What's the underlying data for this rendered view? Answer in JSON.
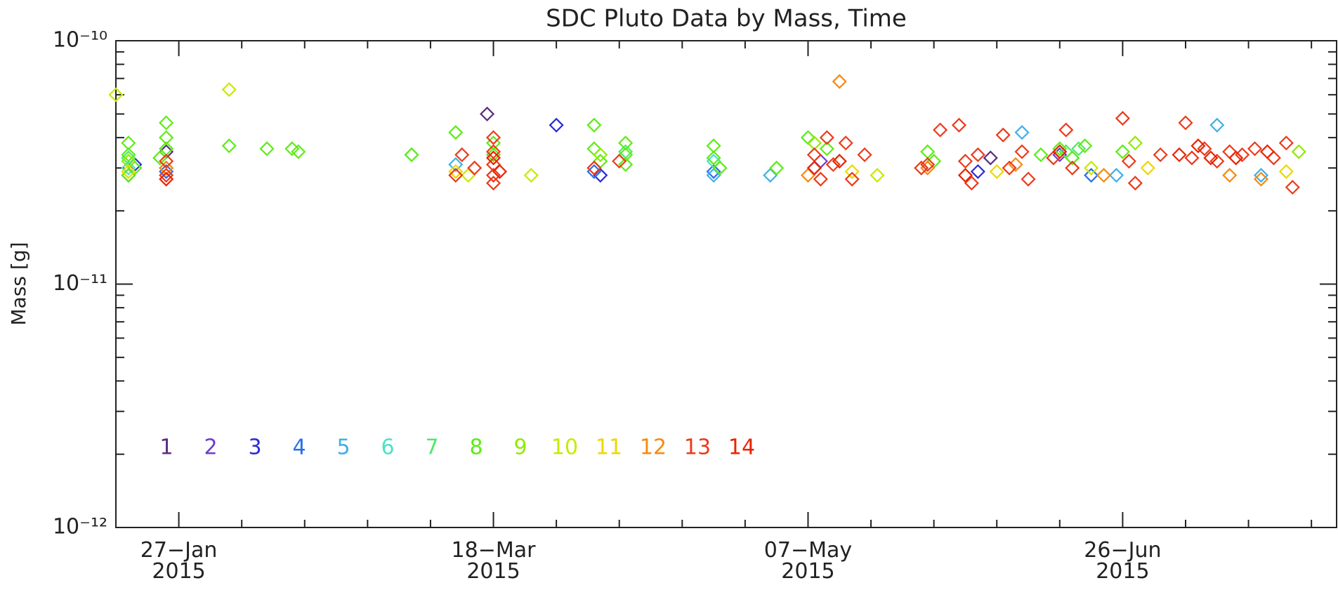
{
  "chart_data": {
    "type": "scatter",
    "title": "SDC Pluto Data by Mass, Time",
    "y_label": "Mass [g]",
    "log_y": true,
    "xlim": [
      "2015-01-17",
      "2015-07-30"
    ],
    "xticks": [
      {
        "value": "2015-01-27",
        "label": "27−Jan\n2015"
      },
      {
        "value": "2015-03-18",
        "label": "18−Mar\n2015"
      },
      {
        "value": "2015-05-07",
        "label": "07−May\n2015"
      },
      {
        "value": "2015-06-26",
        "label": "26−Jun\n2015"
      }
    ],
    "xminorticks": [
      "2015-02-06",
      "2015-02-16",
      "2015-02-26",
      "2015-03-08",
      "2015-03-28",
      "2015-04-07",
      "2015-04-17",
      "2015-04-27",
      "2015-05-17",
      "2015-05-27",
      "2015-06-06",
      "2015-06-16",
      "2015-07-06",
      "2015-07-16",
      "2015-07-26"
    ],
    "ylim": [
      1e-12,
      1e-10
    ],
    "yticks": [
      {
        "value": 1e-12,
        "label": "10⁻¹²"
      },
      {
        "value": 1e-11,
        "label": "10⁻¹¹"
      },
      {
        "value": 1e-10,
        "label": "10⁻¹⁰"
      }
    ],
    "yminorticks": [
      2e-12,
      3e-12,
      4e-12,
      5e-12,
      6e-12,
      7e-12,
      8e-12,
      9e-12,
      2e-11,
      3e-11,
      4e-11,
      5e-11,
      6e-11,
      7e-11,
      8e-11,
      9e-11
    ],
    "series": [
      {
        "name": "1",
        "color": "#5a2d82",
        "x": [
          "2015-01-25",
          "2015-03-17",
          "2015-06-05"
        ],
        "values": [
          3.5e-11,
          5e-11,
          3.3e-11
        ]
      },
      {
        "name": "2",
        "color": "#6f3bd0",
        "x": [
          "2015-01-25",
          "2015-05-09",
          "2015-06-16"
        ],
        "values": [
          3e-11,
          3.2e-11,
          3.4e-11
        ]
      },
      {
        "name": "3",
        "color": "#2b2bd6",
        "x": [
          "2015-01-20",
          "2015-03-28",
          "2015-04-04",
          "2015-05-08",
          "2015-06-03"
        ],
        "values": [
          3.1e-11,
          4.5e-11,
          2.8e-11,
          3e-11,
          2.9e-11
        ]
      },
      {
        "name": "4",
        "color": "#2a6ee8",
        "x": [
          "2015-01-19",
          "2015-01-25",
          "2015-04-03",
          "2015-04-22",
          "2015-06-21"
        ],
        "values": [
          2.8e-11,
          2.9e-11,
          2.9e-11,
          2.9e-11,
          2.8e-11
        ]
      },
      {
        "name": "5",
        "color": "#3fb0ea",
        "x": [
          "2015-03-12",
          "2015-04-22",
          "2015-05-01",
          "2015-06-10",
          "2015-06-25",
          "2015-07-11",
          "2015-07-18"
        ],
        "values": [
          3.1e-11,
          2.8e-11,
          2.8e-11,
          4.2e-11,
          2.8e-11,
          4.5e-11,
          2.8e-11
        ]
      },
      {
        "name": "6",
        "color": "#4de0c8",
        "x": [
          "2015-01-19",
          "2015-04-22",
          "2015-06-18"
        ],
        "values": [
          3e-11,
          3.2e-11,
          3.3e-11
        ]
      },
      {
        "name": "7",
        "color": "#4ee86a",
        "x": [
          "2015-01-19",
          "2015-03-05",
          "2015-04-08",
          "2015-06-17",
          "2015-06-19"
        ],
        "values": [
          3.3e-11,
          3.4e-11,
          3.5e-11,
          3.5e-11,
          3.6e-11
        ]
      },
      {
        "name": "8",
        "color": "#5cec14",
        "x": [
          "2015-01-19",
          "2015-01-19",
          "2015-01-20",
          "2015-01-19",
          "2015-01-25",
          "2015-01-25",
          "2015-01-25",
          "2015-01-24",
          "2015-02-04",
          "2015-02-10",
          "2015-02-14",
          "2015-02-15",
          "2015-03-05",
          "2015-03-12",
          "2015-03-18",
          "2015-03-18",
          "2015-04-03",
          "2015-04-03",
          "2015-04-04",
          "2015-04-08",
          "2015-04-08",
          "2015-04-08",
          "2015-04-22",
          "2015-04-22",
          "2015-04-23",
          "2015-05-02",
          "2015-05-07",
          "2015-05-10",
          "2015-05-12",
          "2015-05-26",
          "2015-05-27",
          "2015-06-13",
          "2015-06-16",
          "2015-06-18",
          "2015-06-20",
          "2015-06-26"
        ],
        "values": [
          3.8e-11,
          3.4e-11,
          3e-11,
          2.8e-11,
          4.6e-11,
          4e-11,
          3.6e-11,
          3.3e-11,
          3.7e-11,
          3.6e-11,
          3.6e-11,
          3.5e-11,
          3.4e-11,
          4.2e-11,
          3.8e-11,
          3.4e-11,
          4.5e-11,
          3.6e-11,
          3.2e-11,
          3.8e-11,
          3.4e-11,
          3.1e-11,
          3.7e-11,
          3.3e-11,
          3e-11,
          3e-11,
          4e-11,
          3.6e-11,
          3.2e-11,
          3.5e-11,
          3.2e-11,
          3.4e-11,
          3.6e-11,
          3.3e-11,
          3.7e-11,
          3.5e-11
        ]
      },
      {
        "name": "9",
        "color": "#90ea00",
        "x": [
          "2015-01-19",
          "2015-04-04",
          "2015-05-08",
          "2015-06-28",
          "2015-07-24"
        ],
        "values": [
          3.2e-11,
          3.4e-11,
          3.8e-11,
          3.8e-11,
          3.5e-11
        ]
      },
      {
        "name": "10",
        "color": "#c8ea00",
        "x": [
          "2015-01-17",
          "2015-02-04",
          "2015-01-25",
          "2015-03-14",
          "2015-03-24",
          "2015-05-18",
          "2015-06-21"
        ],
        "values": [
          6e-11,
          6.3e-11,
          3e-11,
          2.8e-11,
          2.8e-11,
          2.8e-11,
          3e-11
        ]
      },
      {
        "name": "11",
        "color": "#ecd800",
        "x": [
          "2015-01-19",
          "2015-03-12",
          "2015-05-14",
          "2015-06-06",
          "2015-06-30",
          "2015-07-22"
        ],
        "values": [
          2.9e-11,
          2.9e-11,
          2.9e-11,
          2.9e-11,
          3e-11,
          2.9e-11
        ]
      },
      {
        "name": "12",
        "color": "#f68a10",
        "x": [
          "2015-01-25",
          "2015-05-12",
          "2015-05-07",
          "2015-05-26",
          "2015-06-09",
          "2015-06-23",
          "2015-07-13",
          "2015-07-18"
        ],
        "values": [
          3e-11,
          6.8e-11,
          2.8e-11,
          3e-11,
          3.1e-11,
          2.8e-11,
          2.8e-11,
          2.7e-11
        ]
      },
      {
        "name": "13",
        "color": "#ec3a1a",
        "x": [
          "2015-01-25",
          "2015-01-25",
          "2015-03-12",
          "2015-03-13",
          "2015-03-15",
          "2015-03-18",
          "2015-03-18",
          "2015-03-18",
          "2015-03-18",
          "2015-03-18",
          "2015-04-03",
          "2015-04-07",
          "2015-05-08",
          "2015-05-09",
          "2015-05-10",
          "2015-05-11",
          "2015-05-13",
          "2015-05-14",
          "2015-05-16",
          "2015-05-25",
          "2015-05-26",
          "2015-05-28",
          "2015-05-31",
          "2015-06-01",
          "2015-06-02",
          "2015-06-03",
          "2015-06-07",
          "2015-06-08",
          "2015-06-10",
          "2015-06-11",
          "2015-06-15",
          "2015-06-17",
          "2015-06-18",
          "2015-06-26",
          "2015-06-27",
          "2015-06-28",
          "2015-07-02",
          "2015-07-06",
          "2015-07-07",
          "2015-07-09",
          "2015-07-11",
          "2015-07-13",
          "2015-07-15",
          "2015-07-17",
          "2015-07-20",
          "2015-07-22",
          "2015-07-23"
        ],
        "values": [
          2.8e-11,
          3.2e-11,
          2.8e-11,
          3.4e-11,
          3e-11,
          4e-11,
          3.5e-11,
          3.1e-11,
          2.8e-11,
          2.6e-11,
          3e-11,
          3.2e-11,
          3.4e-11,
          2.7e-11,
          4e-11,
          3.1e-11,
          3.8e-11,
          2.7e-11,
          3.4e-11,
          3e-11,
          3.1e-11,
          4.3e-11,
          4.5e-11,
          3.2e-11,
          2.6e-11,
          3.4e-11,
          4.1e-11,
          3e-11,
          3.5e-11,
          2.7e-11,
          3.3e-11,
          4.3e-11,
          3e-11,
          4.8e-11,
          3.2e-11,
          2.6e-11,
          3.4e-11,
          4.6e-11,
          3.3e-11,
          3.6e-11,
          3.2e-11,
          3.5e-11,
          3.4e-11,
          3.6e-11,
          3.3e-11,
          3.8e-11,
          2.5e-11
        ]
      },
      {
        "name": "14",
        "color": "#ea2200",
        "x": [
          "2015-01-25",
          "2015-03-18",
          "2015-03-19",
          "2015-05-08",
          "2015-05-12",
          "2015-06-01",
          "2015-06-16",
          "2015-07-05",
          "2015-07-08",
          "2015-07-10",
          "2015-07-14",
          "2015-07-19"
        ],
        "values": [
          2.7e-11,
          3.3e-11,
          2.9e-11,
          3e-11,
          3.2e-11,
          2.8e-11,
          3.5e-11,
          3.4e-11,
          3.7e-11,
          3.3e-11,
          3.3e-11,
          3.5e-11
        ]
      }
    ]
  }
}
